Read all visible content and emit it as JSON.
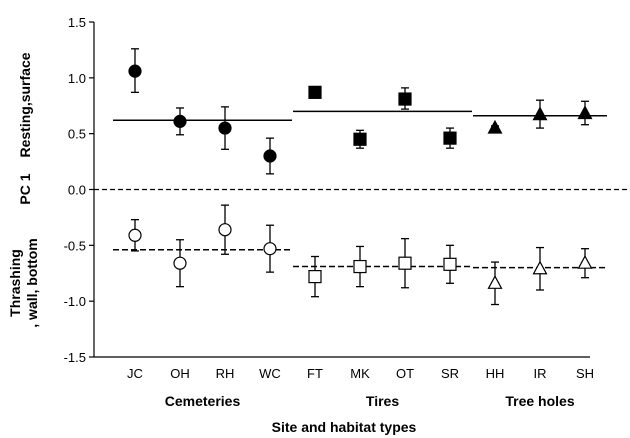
{
  "chart_data": {
    "type": "scatter",
    "title": "",
    "xlabel": "Site and habitat types",
    "ylabel_top": "Resting,surface",
    "ylabel_mid": "PC 1",
    "ylabel_bottom": "Thrashing , wall, bottom",
    "ylabel_bottom_lines": [
      "Thrashing",
      ", wall, bottom"
    ],
    "ylim": [
      -1.5,
      1.5
    ],
    "yticks": [
      "1.5",
      "1.0",
      "0.5",
      "0.0",
      "-0.5",
      "-1.0",
      "-1.5"
    ],
    "categories": [
      "JC",
      "OH",
      "RH",
      "WC",
      "FT",
      "MK",
      "OT",
      "SR",
      "HH",
      "IR",
      "SH"
    ],
    "groups": [
      {
        "name": "Cemeteries",
        "sites": [
          "JC",
          "OH",
          "RH",
          "WC"
        ],
        "marker": "circle",
        "upper_mean": 0.62,
        "lower_mean": -0.54
      },
      {
        "name": "Tires",
        "sites": [
          "FT",
          "MK",
          "OT",
          "SR"
        ],
        "marker": "square",
        "upper_mean": 0.7,
        "lower_mean": -0.69
      },
      {
        "name": "Tree holes",
        "sites": [
          "HH",
          "IR",
          "SH"
        ],
        "marker": "triangle",
        "upper_mean": 0.66,
        "lower_mean": -0.7
      }
    ],
    "series": [
      {
        "component": "resting-surface",
        "fill": "filled",
        "points": [
          {
            "x": "JC",
            "y": 1.06,
            "err_low": 0.87,
            "err_high": 1.26
          },
          {
            "x": "OH",
            "y": 0.61,
            "err_low": 0.49,
            "err_high": 0.73
          },
          {
            "x": "RH",
            "y": 0.55,
            "err_low": 0.36,
            "err_high": 0.74
          },
          {
            "x": "WC",
            "y": 0.3,
            "err_low": 0.14,
            "err_high": 0.46
          },
          {
            "x": "FT",
            "y": 0.87,
            "err_low": 0.83,
            "err_high": 0.9
          },
          {
            "x": "MK",
            "y": 0.45,
            "err_low": 0.37,
            "err_high": 0.53
          },
          {
            "x": "OT",
            "y": 0.81,
            "err_low": 0.72,
            "err_high": 0.91
          },
          {
            "x": "SR",
            "y": 0.46,
            "err_low": 0.37,
            "err_high": 0.55
          },
          {
            "x": "HH",
            "y": 0.55,
            "err_low": 0.53,
            "err_high": 0.57
          },
          {
            "x": "IR",
            "y": 0.67,
            "err_low": 0.55,
            "err_high": 0.8
          },
          {
            "x": "SH",
            "y": 0.68,
            "err_low": 0.58,
            "err_high": 0.79
          }
        ]
      },
      {
        "component": "thrashing-wall-bottom",
        "fill": "open",
        "points": [
          {
            "x": "JC",
            "y": -0.41,
            "err_low": -0.55,
            "err_high": -0.27
          },
          {
            "x": "OH",
            "y": -0.66,
            "err_low": -0.87,
            "err_high": -0.45
          },
          {
            "x": "RH",
            "y": -0.36,
            "err_low": -0.58,
            "err_high": -0.14
          },
          {
            "x": "WC",
            "y": -0.53,
            "err_low": -0.74,
            "err_high": -0.32
          },
          {
            "x": "FT",
            "y": -0.78,
            "err_low": -0.96,
            "err_high": -0.6
          },
          {
            "x": "MK",
            "y": -0.69,
            "err_low": -0.87,
            "err_high": -0.51
          },
          {
            "x": "OT",
            "y": -0.66,
            "err_low": -0.88,
            "err_high": -0.44
          },
          {
            "x": "SR",
            "y": -0.67,
            "err_low": -0.84,
            "err_high": -0.5
          },
          {
            "x": "HH",
            "y": -0.84,
            "err_low": -1.03,
            "err_high": -0.65
          },
          {
            "x": "IR",
            "y": -0.71,
            "err_low": -0.9,
            "err_high": -0.52
          },
          {
            "x": "SH",
            "y": -0.66,
            "err_low": -0.79,
            "err_high": -0.53
          }
        ]
      }
    ],
    "reference_line": {
      "y": 0.0,
      "style": "dashed"
    },
    "grid": false,
    "legend": "none",
    "colors": {
      "marker": "#000000",
      "axis": "#000000",
      "background": "#ffffff"
    }
  }
}
